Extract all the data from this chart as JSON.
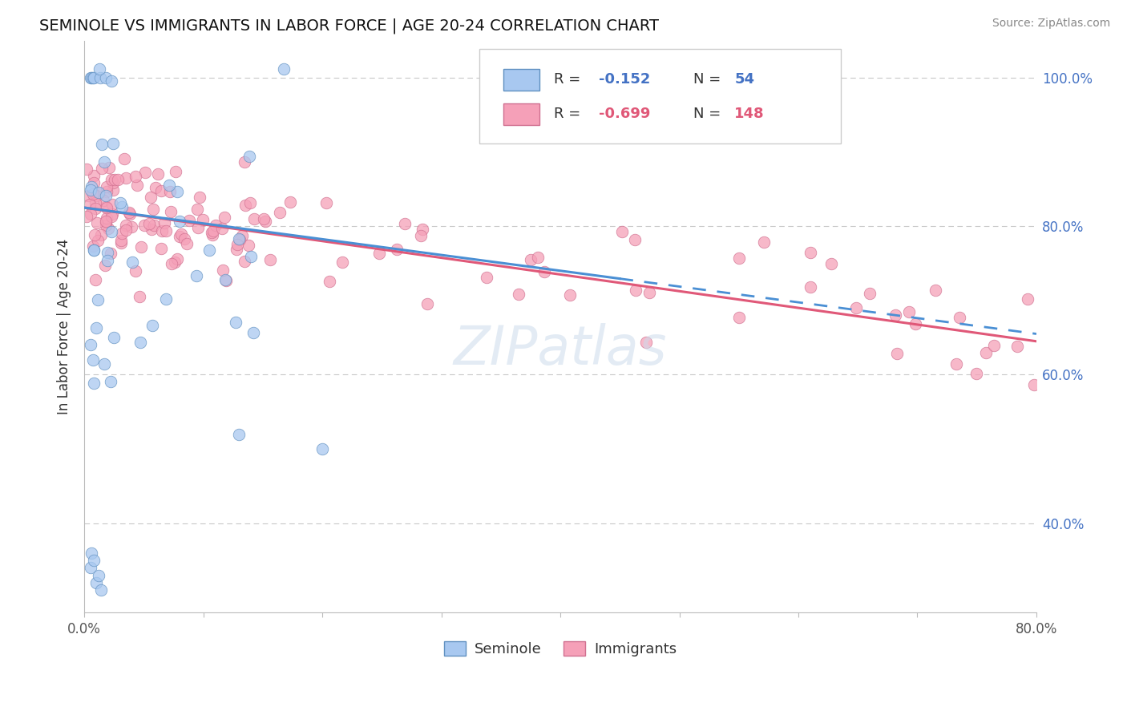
{
  "title": "SEMINOLE VS IMMIGRANTS IN LABOR FORCE | AGE 20-24 CORRELATION CHART",
  "source_text": "Source: ZipAtlas.com",
  "ylabel": "In Labor Force | Age 20-24",
  "xlim": [
    0.0,
    0.8
  ],
  "ylim": [
    0.28,
    1.05
  ],
  "xtick_pos": [
    0.0,
    0.1,
    0.2,
    0.3,
    0.4,
    0.5,
    0.6,
    0.7,
    0.8
  ],
  "xticklabels": [
    "0.0%",
    "",
    "",
    "",
    "",
    "",
    "",
    "",
    "80.0%"
  ],
  "ytick_positions": [
    0.4,
    0.6,
    0.8,
    1.0
  ],
  "ytick_labels": [
    "40.0%",
    "60.0%",
    "80.0%",
    "100.0%"
  ],
  "grid_color": "#c8c8c8",
  "background_color": "#ffffff",
  "seminole_color": "#a8c8f0",
  "immigrants_color": "#f5a0b8",
  "seminole_R": -0.152,
  "seminole_N": 54,
  "immigrants_R": -0.699,
  "immigrants_N": 148,
  "seminole_line_color": "#4a8fd4",
  "immigrants_line_color": "#e05878",
  "watermark": "ZIPatlas",
  "sem_line_x0": 0.0,
  "sem_line_x1": 0.8,
  "sem_line_y0": 0.825,
  "sem_line_y1": 0.655,
  "sem_line_solid_end": 0.45,
  "imm_line_x0": 0.0,
  "imm_line_x1": 0.8,
  "imm_line_y0": 0.825,
  "imm_line_y1": 0.645
}
